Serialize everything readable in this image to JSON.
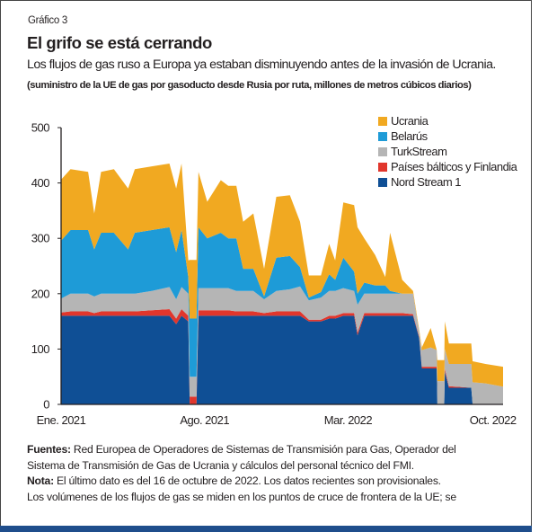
{
  "header": {
    "label": "Gráfico 3",
    "title": "El grifo se está cerrando",
    "subtitle": "Los flujos de gas ruso a Europa ya estaban disminuyendo antes de la invasión de Ucrania.",
    "units_note": "(suministro de la UE de gas por gasoducto desde Rusia por ruta, millones de metros cúbicos diarios)"
  },
  "footer": {
    "sources_label": "Fuentes:",
    "sources_text_1": " Red Europea de Operadores de Sistemas de Transmisión para Gas, Operador del",
    "sources_text_2": "Sistema de Transmisión de Gas de Ucrania y cálculos del personal técnico del FMI.",
    "note_label": "Nota:",
    "note_text_1": " El último dato es del 16 de octubre de 2022. Los datos recientes son provisionales.",
    "note_text_2": "Los volúmenes de los flujos de gas se miden en los puntos de cruce de frontera de la UE; se"
  },
  "chart_data": {
    "type": "area",
    "stacked": true,
    "ylim": [
      0,
      500
    ],
    "yticks": [
      "0",
      "100",
      "200",
      "300",
      "400",
      "500"
    ],
    "ytick_values": [
      0,
      100,
      200,
      300,
      400,
      500
    ],
    "xlim": [
      "2021-01-01",
      "2022-10-16"
    ],
    "xticks": [
      {
        "label": "Ene. 2021",
        "date": "2021-01-01"
      },
      {
        "label": "Ago. 2021",
        "date": "2021-08-01"
      },
      {
        "label": "Mar. 2022",
        "date": "2022-03-01"
      },
      {
        "label": "Oct. 2022",
        "date": "2022-10-01"
      }
    ],
    "grid": false,
    "legend_position": "top-right",
    "x": [
      "2021-01-01",
      "2021-01-15",
      "2021-02-10",
      "2021-02-19",
      "2021-03-01",
      "2021-03-20",
      "2021-04-10",
      "2021-04-20",
      "2021-05-15",
      "2021-06-10",
      "2021-06-20",
      "2021-06-28",
      "2021-07-08",
      "2021-07-10",
      "2021-07-20",
      "2021-07-23",
      "2021-08-05",
      "2021-08-25",
      "2021-09-05",
      "2021-09-17",
      "2021-09-27",
      "2021-10-12",
      "2021-10-28",
      "2021-11-15",
      "2021-12-05",
      "2021-12-20",
      "2022-01-02",
      "2022-01-20",
      "2022-02-01",
      "2022-02-10",
      "2022-02-22",
      "2022-03-10",
      "2022-03-15",
      "2022-03-25",
      "2022-04-10",
      "2022-04-25",
      "2022-05-02",
      "2022-05-20",
      "2022-06-05",
      "2022-06-14",
      "2022-06-18",
      "2022-07-01",
      "2022-07-10",
      "2022-07-11",
      "2022-07-21",
      "2022-07-22",
      "2022-07-28",
      "2022-08-30",
      "2022-09-01",
      "2022-09-20",
      "2022-10-16"
    ],
    "series": [
      {
        "name": "Nord Stream 1",
        "color": "#0f4f95",
        "values": [
          160,
          160,
          160,
          160,
          160,
          160,
          160,
          160,
          160,
          160,
          145,
          160,
          150,
          0,
          0,
          160,
          160,
          160,
          160,
          160,
          160,
          160,
          160,
          160,
          160,
          160,
          150,
          150,
          155,
          155,
          160,
          160,
          125,
          160,
          160,
          160,
          160,
          160,
          160,
          120,
          65,
          65,
          65,
          0,
          0,
          60,
          30,
          30,
          0,
          0,
          0
        ]
      },
      {
        "name": "Países bálticos y Finlandia",
        "color": "#e1362c",
        "values": [
          6,
          8,
          8,
          5,
          8,
          8,
          8,
          8,
          10,
          12,
          10,
          12,
          10,
          14,
          14,
          10,
          10,
          10,
          10,
          8,
          8,
          8,
          5,
          8,
          8,
          8,
          3,
          3,
          5,
          5,
          5,
          5,
          5,
          5,
          5,
          5,
          5,
          5,
          3,
          2,
          3,
          3,
          3,
          0,
          0,
          5,
          3,
          0,
          0,
          0,
          0
        ]
      },
      {
        "name": "TurkStream",
        "color": "#b5b5b5",
        "values": [
          25,
          32,
          32,
          30,
          32,
          32,
          32,
          32,
          35,
          40,
          35,
          40,
          40,
          36,
          36,
          40,
          40,
          40,
          40,
          37,
          37,
          37,
          25,
          37,
          40,
          45,
          35,
          40,
          45,
          45,
          45,
          40,
          50,
          35,
          35,
          35,
          35,
          35,
          37,
          10,
          30,
          35,
          30,
          42,
          42,
          35,
          40,
          43,
          40,
          38,
          32
        ]
      },
      {
        "name": "Belarús",
        "color": "#1e9bd7",
        "values": [
          105,
          115,
          115,
          85,
          110,
          110,
          80,
          110,
          110,
          108,
          85,
          103,
          30,
          105,
          105,
          110,
          90,
          100,
          90,
          95,
          40,
          40,
          5,
          60,
          60,
          35,
          5,
          10,
          30,
          20,
          55,
          35,
          20,
          20,
          15,
          15,
          5,
          0,
          0,
          0,
          0,
          0,
          0,
          0,
          0,
          0,
          0,
          0,
          0,
          0,
          0
        ]
      },
      {
        "name": "Ucrania",
        "color": "#f1a921",
        "values": [
          110,
          110,
          105,
          65,
          110,
          115,
          110,
          115,
          115,
          115,
          115,
          120,
          30,
          106,
          106,
          100,
          66,
          95,
          95,
          95,
          85,
          100,
          50,
          110,
          110,
          82,
          40,
          30,
          55,
          35,
          100,
          120,
          120,
          80,
          55,
          15,
          105,
          25,
          5,
          3,
          5,
          35,
          0,
          38,
          38,
          50,
          37,
          37,
          38,
          35,
          36
        ]
      }
    ]
  }
}
